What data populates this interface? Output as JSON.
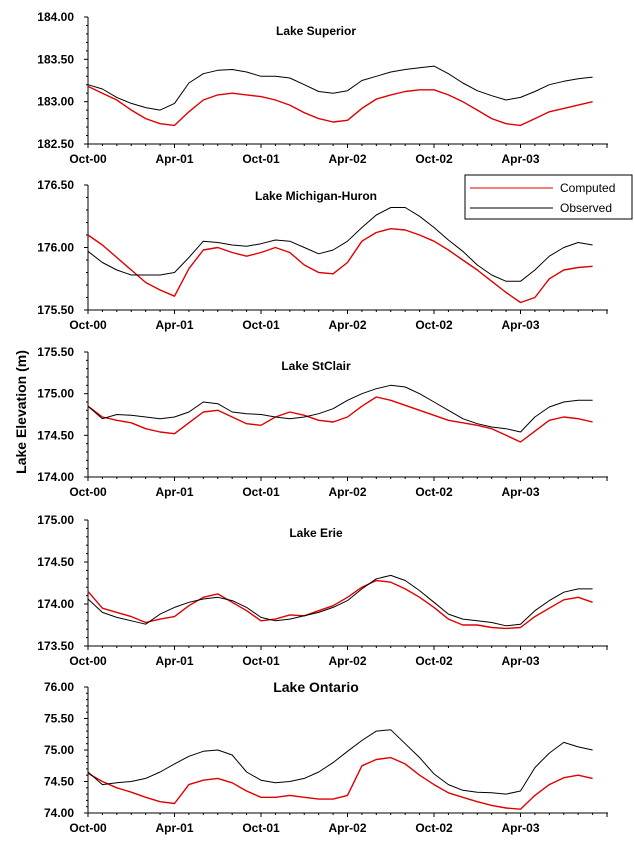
{
  "figure": {
    "ylabel": "Lake Elevation (m)",
    "legend": {
      "placement": "top-right of second panel",
      "computed": "Computed",
      "observed": "Observed"
    },
    "x_tick_labels": [
      "Oct-00",
      "Apr-01",
      "Oct-01",
      "Apr-02",
      "Oct-02",
      "Apr-03"
    ],
    "colors": {
      "computed": "#e00000",
      "observed": "#000000"
    }
  },
  "chart_data": [
    {
      "type": "line",
      "title": "Lake Superior",
      "x": [
        0,
        1,
        2,
        3,
        4,
        5,
        6,
        7,
        8,
        9,
        10,
        11,
        12,
        13,
        14,
        15,
        16,
        17,
        18,
        19,
        20,
        21,
        22,
        23,
        24,
        25,
        26,
        27,
        28,
        29,
        30,
        31,
        32,
        33,
        34,
        35
      ],
      "x_unit": "months since Oct-00",
      "ylim": [
        182.5,
        184.0
      ],
      "y_ticks": [
        "182.50",
        "183.00",
        "183.50",
        "184.00"
      ],
      "series": [
        {
          "name": "Computed",
          "color": "#e00000",
          "values": [
            183.18,
            183.1,
            183.02,
            182.9,
            182.8,
            182.74,
            182.72,
            182.88,
            183.02,
            183.08,
            183.1,
            183.08,
            183.06,
            183.02,
            182.96,
            182.87,
            182.8,
            182.76,
            182.78,
            182.92,
            183.03,
            183.08,
            183.12,
            183.14,
            183.14,
            183.08,
            183.0,
            182.9,
            182.8,
            182.74,
            182.72,
            182.8,
            182.88,
            182.92,
            182.96,
            183.0
          ]
        },
        {
          "name": "Observed",
          "color": "#000000",
          "values": [
            183.2,
            183.15,
            183.05,
            182.98,
            182.93,
            182.9,
            182.98,
            183.22,
            183.33,
            183.37,
            183.38,
            183.35,
            183.3,
            183.3,
            183.28,
            183.2,
            183.12,
            183.1,
            183.13,
            183.25,
            183.3,
            183.35,
            183.38,
            183.4,
            183.42,
            183.33,
            183.22,
            183.13,
            183.07,
            183.02,
            183.05,
            183.12,
            183.2,
            183.24,
            183.27,
            183.29
          ]
        }
      ]
    },
    {
      "type": "line",
      "title": "Lake Michigan-Huron",
      "x": [
        0,
        1,
        2,
        3,
        4,
        5,
        6,
        7,
        8,
        9,
        10,
        11,
        12,
        13,
        14,
        15,
        16,
        17,
        18,
        19,
        20,
        21,
        22,
        23,
        24,
        25,
        26,
        27,
        28,
        29,
        30,
        31,
        32,
        33,
        34,
        35
      ],
      "x_unit": "months since Oct-00",
      "ylim": [
        175.5,
        176.5
      ],
      "y_ticks": [
        "175.50",
        "176.00",
        "176.50"
      ],
      "series": [
        {
          "name": "Computed",
          "color": "#e00000",
          "values": [
            176.1,
            176.02,
            175.92,
            175.82,
            175.72,
            175.66,
            175.61,
            175.83,
            175.98,
            176.0,
            175.96,
            175.93,
            175.96,
            176.0,
            175.96,
            175.86,
            175.8,
            175.79,
            175.88,
            176.05,
            176.12,
            176.15,
            176.14,
            176.1,
            176.05,
            175.98,
            175.9,
            175.82,
            175.73,
            175.64,
            175.56,
            175.6,
            175.75,
            175.82,
            175.84,
            175.85
          ]
        },
        {
          "name": "Observed",
          "color": "#000000",
          "values": [
            175.97,
            175.88,
            175.82,
            175.78,
            175.78,
            175.78,
            175.8,
            175.92,
            176.05,
            176.04,
            176.02,
            176.01,
            176.03,
            176.06,
            176.05,
            176.0,
            175.95,
            175.98,
            176.05,
            176.16,
            176.26,
            176.32,
            176.32,
            176.25,
            176.16,
            176.06,
            175.97,
            175.86,
            175.78,
            175.73,
            175.73,
            175.82,
            175.93,
            176.0,
            176.04,
            176.02
          ]
        }
      ]
    },
    {
      "type": "line",
      "title": "Lake StClair",
      "x": [
        0,
        1,
        2,
        3,
        4,
        5,
        6,
        7,
        8,
        9,
        10,
        11,
        12,
        13,
        14,
        15,
        16,
        17,
        18,
        19,
        20,
        21,
        22,
        23,
        24,
        25,
        26,
        27,
        28,
        29,
        30,
        31,
        32,
        33,
        34,
        35
      ],
      "x_unit": "months since Oct-00",
      "ylim": [
        174.0,
        175.5
      ],
      "y_ticks": [
        "174.00",
        "174.50",
        "175.00",
        "175.50"
      ],
      "series": [
        {
          "name": "Computed",
          "color": "#e00000",
          "values": [
            174.85,
            174.72,
            174.68,
            174.65,
            174.58,
            174.54,
            174.52,
            174.65,
            174.78,
            174.8,
            174.72,
            174.64,
            174.62,
            174.72,
            174.78,
            174.74,
            174.68,
            174.66,
            174.72,
            174.85,
            174.96,
            174.92,
            174.86,
            174.8,
            174.74,
            174.68,
            174.65,
            174.62,
            174.58,
            174.5,
            174.42,
            174.55,
            174.68,
            174.72,
            174.7,
            174.66
          ]
        },
        {
          "name": "Observed",
          "color": "#000000",
          "values": [
            174.85,
            174.7,
            174.75,
            174.74,
            174.72,
            174.7,
            174.72,
            174.78,
            174.9,
            174.88,
            174.78,
            174.76,
            174.75,
            174.72,
            174.7,
            174.72,
            174.76,
            174.82,
            174.92,
            175.0,
            175.06,
            175.1,
            175.08,
            175.0,
            174.9,
            174.8,
            174.7,
            174.64,
            174.6,
            174.58,
            174.54,
            174.72,
            174.84,
            174.9,
            174.92,
            174.92
          ]
        }
      ]
    },
    {
      "type": "line",
      "title": "Lake Erie",
      "x": [
        0,
        1,
        2,
        3,
        4,
        5,
        6,
        7,
        8,
        9,
        10,
        11,
        12,
        13,
        14,
        15,
        16,
        17,
        18,
        19,
        20,
        21,
        22,
        23,
        24,
        25,
        26,
        27,
        28,
        29,
        30,
        31,
        32,
        33,
        34,
        35
      ],
      "x_unit": "months since Oct-00",
      "ylim": [
        173.5,
        175.0
      ],
      "y_ticks": [
        "173.50",
        "174.00",
        "174.50",
        "175.00"
      ],
      "series": [
        {
          "name": "Computed",
          "color": "#e00000",
          "values": [
            174.15,
            173.95,
            173.9,
            173.85,
            173.78,
            173.82,
            173.85,
            173.98,
            174.08,
            174.12,
            174.02,
            173.92,
            173.8,
            173.82,
            173.87,
            173.86,
            173.92,
            173.98,
            174.08,
            174.2,
            174.28,
            174.26,
            174.18,
            174.08,
            173.96,
            173.82,
            173.75,
            173.75,
            173.72,
            173.71,
            173.72,
            173.85,
            173.95,
            174.05,
            174.08,
            174.02
          ]
        },
        {
          "name": "Observed",
          "color": "#000000",
          "values": [
            174.06,
            173.9,
            173.84,
            173.8,
            173.76,
            173.88,
            173.96,
            174.02,
            174.06,
            174.08,
            174.04,
            173.96,
            173.84,
            173.8,
            173.82,
            173.86,
            173.9,
            173.96,
            174.04,
            174.18,
            174.3,
            174.34,
            174.28,
            174.16,
            174.02,
            173.88,
            173.82,
            173.8,
            173.78,
            173.74,
            173.76,
            173.92,
            174.04,
            174.14,
            174.18,
            174.18
          ]
        }
      ]
    },
    {
      "type": "line",
      "title": "Lake Ontario",
      "x": [
        0,
        1,
        2,
        3,
        4,
        5,
        6,
        7,
        8,
        9,
        10,
        11,
        12,
        13,
        14,
        15,
        16,
        17,
        18,
        19,
        20,
        21,
        22,
        23,
        24,
        25,
        26,
        27,
        28,
        29,
        30,
        31,
        32,
        33,
        34,
        35
      ],
      "x_unit": "months since Oct-00",
      "ylim": [
        74.0,
        76.0
      ],
      "y_ticks": [
        "74.00",
        "74.50",
        "75.00",
        "75.50",
        "76.00"
      ],
      "series": [
        {
          "name": "Computed",
          "color": "#e00000",
          "values": [
            74.63,
            74.5,
            74.4,
            74.33,
            74.25,
            74.18,
            74.15,
            74.45,
            74.52,
            74.55,
            74.48,
            74.35,
            74.25,
            74.25,
            74.28,
            74.25,
            74.22,
            74.22,
            74.28,
            74.75,
            74.85,
            74.88,
            74.78,
            74.6,
            74.45,
            74.32,
            74.25,
            74.18,
            74.12,
            74.08,
            74.06,
            74.28,
            74.45,
            74.56,
            74.6,
            74.55
          ]
        },
        {
          "name": "Observed",
          "color": "#000000",
          "values": [
            74.65,
            74.45,
            74.48,
            74.5,
            74.55,
            74.65,
            74.78,
            74.9,
            74.98,
            75.0,
            74.92,
            74.65,
            74.52,
            74.48,
            74.5,
            74.55,
            74.65,
            74.8,
            74.98,
            75.15,
            75.3,
            75.32,
            75.1,
            74.88,
            74.62,
            74.45,
            74.36,
            74.33,
            74.32,
            74.3,
            74.35,
            74.72,
            74.95,
            75.12,
            75.05,
            75.0
          ]
        }
      ]
    }
  ]
}
